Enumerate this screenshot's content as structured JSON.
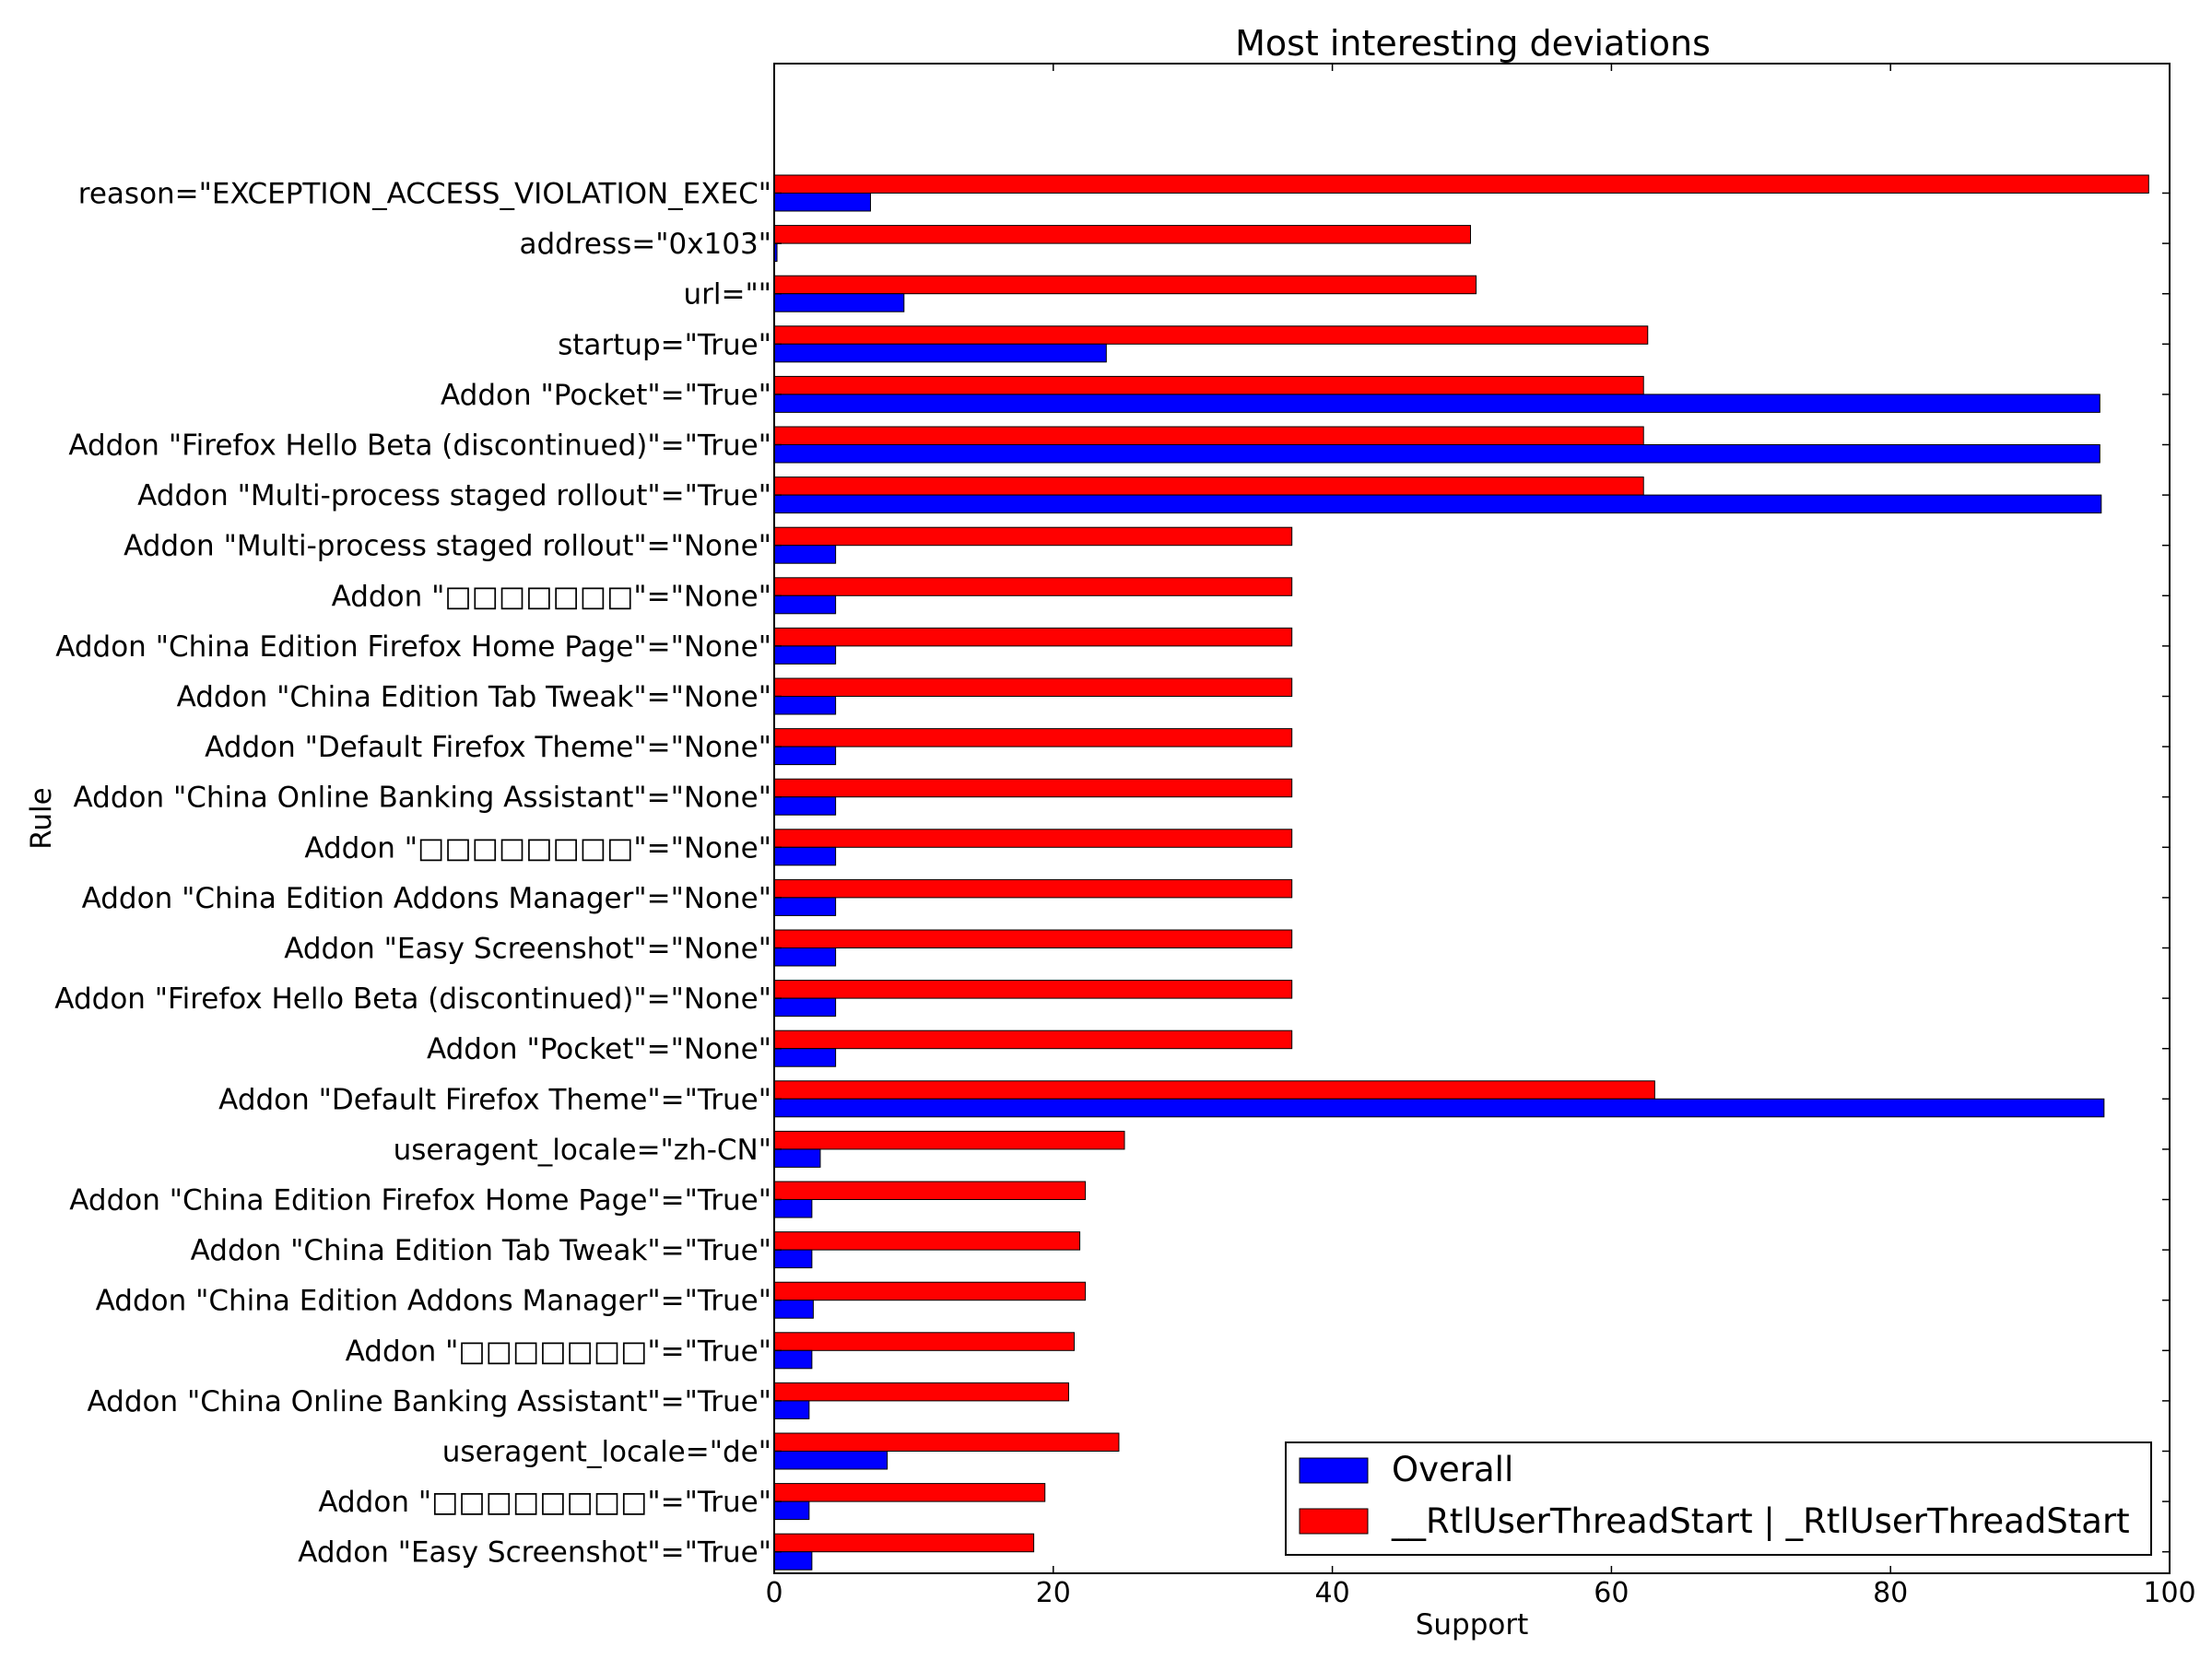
{
  "chart_data": {
    "type": "bar",
    "orientation": "horizontal",
    "title": "Most interesting deviations",
    "xlabel": "Support",
    "ylabel": "Rule",
    "xlim": [
      0,
      100
    ],
    "xticks": [
      "0",
      "20",
      "40",
      "60",
      "80",
      "100"
    ],
    "grid": false,
    "legend_position": "bottom-right",
    "categories": [
      "reason=\"EXCEPTION_ACCESS_VIOLATION_EXEC\"",
      "address=\"0x103\"",
      "url=\"\"",
      "startup=\"True\"",
      "Addon \"Pocket\"=\"True\"",
      "Addon \"Firefox Hello Beta (discontinued)\"=\"True\"",
      "Addon \"Multi-process staged rollout\"=\"True\"",
      "Addon \"Multi-process staged rollout\"=\"None\"",
      "Addon \"□□□□□□□\"=\"None\"",
      "Addon \"China Edition Firefox Home Page\"=\"None\"",
      "Addon \"China Edition Tab Tweak\"=\"None\"",
      "Addon \"Default Firefox Theme\"=\"None\"",
      "Addon \"China Online Banking Assistant\"=\"None\"",
      "Addon \"□□□□□□□□\"=\"None\"",
      "Addon \"China Edition Addons Manager\"=\"None\"",
      "Addon \"Easy Screenshot\"=\"None\"",
      "Addon \"Firefox Hello Beta (discontinued)\"=\"None\"",
      "Addon \"Pocket\"=\"None\"",
      "Addon \"Default Firefox Theme\"=\"True\"",
      "useragent_locale=\"zh-CN\"",
      "Addon \"China Edition Firefox Home Page\"=\"True\"",
      "Addon \"China Edition Tab Tweak\"=\"True\"",
      "Addon \"China Edition Addons Manager\"=\"True\"",
      "Addon \"□□□□□□□\"=\"True\"",
      "Addon \"China Online Banking Assistant\"=\"True\"",
      "useragent_locale=\"de\"",
      "Addon \"□□□□□□□□\"=\"True\"",
      "Addon \"Easy Screenshot\"=\"True\""
    ],
    "series": [
      {
        "name": "Overall",
        "color": "#0000ff",
        "values": [
          6.9,
          0.2,
          9.3,
          23.8,
          95.0,
          95.0,
          95.1,
          4.4,
          4.4,
          4.4,
          4.4,
          4.4,
          4.4,
          4.4,
          4.4,
          4.4,
          4.4,
          4.4,
          95.3,
          3.3,
          2.7,
          2.7,
          2.8,
          2.7,
          2.5,
          8.1,
          2.5,
          2.7
        ]
      },
      {
        "name": "__RtlUserThreadStart | _RtlUserThreadStart",
        "color": "#ff0000",
        "values": [
          98.5,
          49.9,
          50.3,
          62.6,
          62.3,
          62.3,
          62.3,
          37.1,
          37.1,
          37.1,
          37.1,
          37.1,
          37.1,
          37.1,
          37.1,
          37.1,
          37.1,
          37.1,
          63.1,
          25.1,
          22.3,
          21.9,
          22.3,
          21.5,
          21.1,
          24.7,
          19.4,
          18.6
        ]
      }
    ]
  }
}
